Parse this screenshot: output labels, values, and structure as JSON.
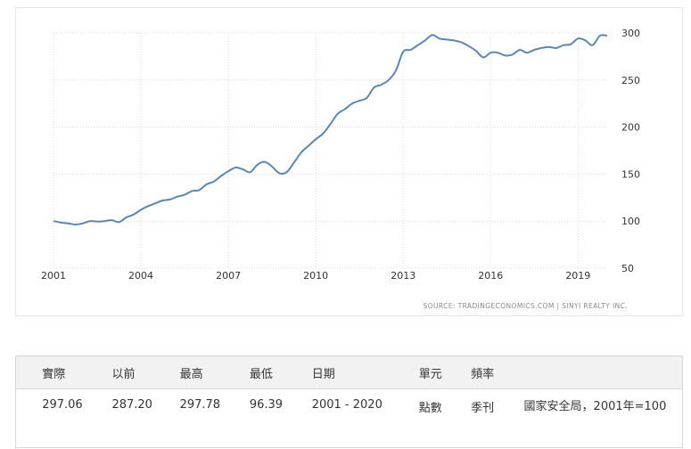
{
  "chart_data": {
    "type": "line",
    "title": "",
    "xlabel": "",
    "ylabel": "",
    "xlim": [
      2001,
      2020
    ],
    "ylim": [
      50,
      300
    ],
    "y_ticks": [
      50,
      100,
      150,
      200,
      250,
      300
    ],
    "x_ticks": [
      2001,
      2004,
      2007,
      2010,
      2013,
      2016,
      2019
    ],
    "grid": "dotted",
    "line_color": "#5b87ac",
    "series": [
      {
        "name": "",
        "x": [
          2001.0,
          2001.25,
          2001.5,
          2001.75,
          2002.0,
          2002.25,
          2002.5,
          2002.75,
          2003.0,
          2003.25,
          2003.5,
          2003.75,
          2004.0,
          2004.25,
          2004.5,
          2004.75,
          2005.0,
          2005.25,
          2005.5,
          2005.75,
          2006.0,
          2006.25,
          2006.5,
          2006.75,
          2007.0,
          2007.25,
          2007.5,
          2007.75,
          2008.0,
          2008.25,
          2008.5,
          2008.75,
          2009.0,
          2009.25,
          2009.5,
          2009.75,
          2010.0,
          2010.25,
          2010.5,
          2010.75,
          2011.0,
          2011.25,
          2011.5,
          2011.75,
          2012.0,
          2012.25,
          2012.5,
          2012.75,
          2013.0,
          2013.25,
          2013.5,
          2013.75,
          2014.0,
          2014.25,
          2014.5,
          2014.75,
          2015.0,
          2015.25,
          2015.5,
          2015.75,
          2016.0,
          2016.25,
          2016.5,
          2016.75,
          2017.0,
          2017.25,
          2017.5,
          2017.75,
          2018.0,
          2018.25,
          2018.5,
          2018.75,
          2019.0,
          2019.25,
          2019.5,
          2019.75,
          2020.0
        ],
        "values": [
          100,
          98.5,
          97.5,
          96.4,
          97.5,
          100,
          99.5,
          100,
          101,
          99,
          104,
          107,
          112,
          116,
          119,
          122,
          123,
          126,
          128,
          132,
          133,
          139,
          142,
          148,
          153,
          157,
          155,
          152,
          160,
          163,
          158,
          151,
          152,
          162,
          173,
          180,
          187,
          193,
          203,
          214,
          219,
          225,
          228,
          231,
          242,
          245,
          250,
          260,
          280,
          282,
          287,
          292,
          297.78,
          294,
          293,
          292,
          290,
          286,
          281,
          274,
          279,
          279,
          276,
          277,
          282,
          279,
          282,
          284,
          285,
          284,
          287,
          288,
          294,
          292,
          287,
          297.06,
          297.06
        ]
      }
    ],
    "source": "SOURCE: TRADINGECONOMICS.COM | SINYI REALTY INC."
  },
  "table": {
    "headers": [
      "實際",
      "以前",
      "最高",
      "最低",
      "日期",
      "單元",
      "頻率",
      ""
    ],
    "row": [
      "297.06",
      "287.20",
      "297.78",
      "96.39",
      "2001 - 2020",
      "點數",
      "季刊",
      "國家安全局，2001年=100"
    ]
  }
}
